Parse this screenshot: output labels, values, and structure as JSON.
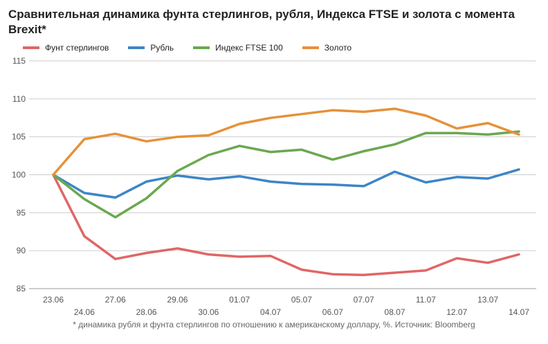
{
  "chart_data": {
    "type": "line",
    "title": "Сравнительная динамика фунта стерлингов, рубля, Индекса FTSE и золота с момента Brexit*",
    "categories": [
      "23.06",
      "24.06",
      "27.06",
      "28.06",
      "29.06",
      "30.06",
      "01.07",
      "04.07",
      "05.07",
      "06.07",
      "07.07",
      "08.07",
      "11.07",
      "12.07",
      "13.07",
      "14.07"
    ],
    "ylim": [
      85,
      115
    ],
    "yticks": [
      85,
      90,
      95,
      100,
      105,
      110,
      115
    ],
    "grid": true,
    "legend_position": "top-left",
    "series": [
      {
        "name": "Фунт стерлингов",
        "color": "#e06666",
        "values": [
          100,
          91.9,
          88.9,
          89.7,
          90.3,
          89.5,
          89.2,
          89.3,
          87.5,
          86.9,
          86.8,
          87.1,
          87.4,
          89.0,
          88.4,
          89.5
        ]
      },
      {
        "name": "Рубль",
        "color": "#3d85c6",
        "values": [
          100,
          97.6,
          97.0,
          99.1,
          99.9,
          99.4,
          99.8,
          99.1,
          98.8,
          98.7,
          98.5,
          100.4,
          99.0,
          99.7,
          99.5,
          100.7
        ]
      },
      {
        "name": "Индекс FTSE 100",
        "color": "#6aa84f",
        "values": [
          100,
          96.8,
          94.4,
          96.9,
          100.5,
          102.6,
          103.8,
          103.0,
          103.3,
          102.0,
          103.1,
          104.0,
          105.5,
          105.5,
          105.3,
          105.7
        ]
      },
      {
        "name": "Золото",
        "color": "#e69138",
        "values": [
          100,
          104.7,
          105.4,
          104.4,
          105.0,
          105.2,
          106.7,
          107.5,
          108.0,
          108.5,
          108.3,
          108.7,
          107.8,
          106.1,
          106.8,
          105.3
        ]
      }
    ]
  },
  "footnote": "* динамика рубля и фунта стерлингов по отношению к американскому доллару, %. Источник: Bloomberg"
}
